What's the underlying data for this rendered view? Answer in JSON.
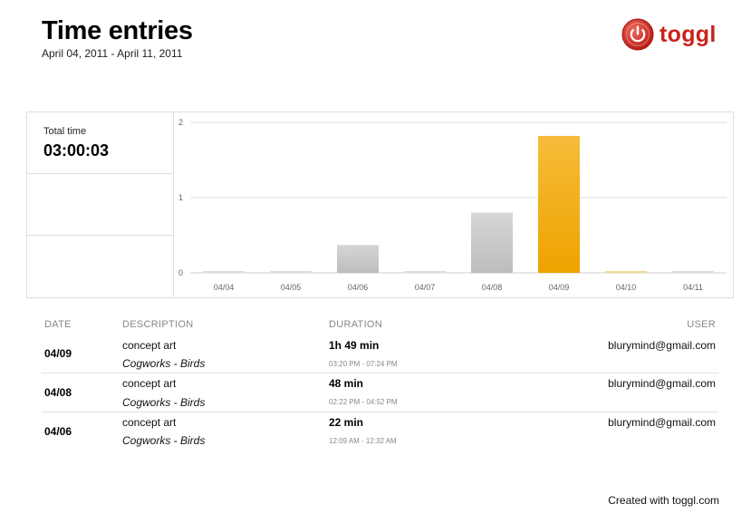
{
  "header": {
    "title": "Time entries",
    "date_range": "April 04, 2011 - April 11, 2011"
  },
  "brand": {
    "name": "toggl",
    "logo_icon": "power-icon",
    "color": "#c8231c"
  },
  "summary": {
    "total_label": "Total time",
    "total_value": "03:00:03"
  },
  "chart_data": {
    "type": "bar",
    "categories": [
      "04/04",
      "04/05",
      "04/06",
      "04/07",
      "04/08",
      "04/09",
      "04/10",
      "04/11"
    ],
    "values": [
      0,
      0,
      0.37,
      0,
      0.8,
      1.82,
      0,
      0
    ],
    "ylim": [
      0,
      2
    ],
    "yticks": [
      0,
      1,
      2
    ],
    "grid": true,
    "highlight_category": "04/09",
    "colors": {
      "default": "#c6c6c6",
      "highlight": "#f0ab17",
      "highlight_zero": "#f5d98a"
    }
  },
  "table": {
    "headers": {
      "date": "DATE",
      "description": "DESCRIPTION",
      "duration": "DURATION",
      "user": "USER"
    },
    "rows": [
      {
        "date": "04/09",
        "description": "concept art",
        "project": "Cogworks - Birds",
        "duration": "1h 49 min",
        "range": "03:20 PM - 07:24 PM",
        "user": "blurymind@gmail.com"
      },
      {
        "date": "04/08",
        "description": "concept art",
        "project": "Cogworks - Birds",
        "duration": "48 min",
        "range": "02:22 PM - 04:52 PM",
        "user": "blurymind@gmail.com"
      },
      {
        "date": "04/06",
        "description": "concept art",
        "project": "Cogworks - Birds",
        "duration": "22 min",
        "range": "12:09 AM - 12:32 AM",
        "user": "blurymind@gmail.com"
      }
    ]
  },
  "footer": {
    "text": "Created with toggl.com"
  }
}
